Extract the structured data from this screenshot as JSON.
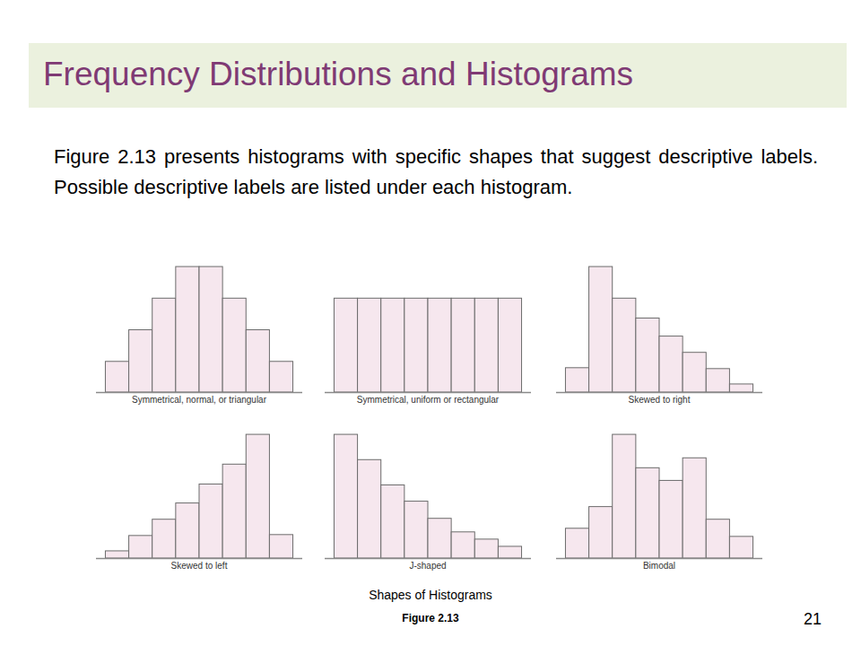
{
  "slide": {
    "title": "Frequency Distributions and Histograms",
    "text": "Figure 2.13 presents histograms with specific shapes that suggest descriptive labels. Possible descriptive labels are listed under each histogram.",
    "caption": "Shapes of Histograms",
    "figure": "Figure 2.13",
    "page": "21"
  },
  "chart_data": [
    {
      "type": "histogram",
      "title": "Symmetrical, normal, or triangular",
      "bins": [
        0,
        1,
        2,
        3,
        4,
        5,
        6,
        7,
        8
      ],
      "values": [
        34,
        69,
        104,
        139,
        139,
        104,
        69,
        34
      ],
      "color": "#f6e7ee",
      "xlim": [
        -0.4,
        8.4
      ],
      "ylim": [
        0,
        150
      ],
      "grid": false,
      "tick_labels": false
    },
    {
      "type": "histogram",
      "title": "Symmetrical, uniform or rectangular",
      "bins": [
        0,
        1,
        2,
        3,
        4,
        5,
        6,
        7,
        8
      ],
      "values": [
        104,
        104,
        104,
        104,
        104,
        104,
        104,
        104
      ],
      "color": "#f6e7ee",
      "xlim": [
        -0.4,
        8.4
      ],
      "ylim": [
        0,
        150
      ],
      "grid": false,
      "tick_labels": false
    },
    {
      "type": "histogram",
      "title": "Skewed to right",
      "bins": [
        0,
        1,
        2,
        3,
        4,
        5,
        6,
        7,
        8
      ],
      "values": [
        27,
        139,
        104,
        82,
        62,
        44,
        26,
        9
      ],
      "color": "#f6e7ee",
      "xlim": [
        -0.4,
        8.4
      ],
      "ylim": [
        0,
        150
      ],
      "grid": false,
      "tick_labels": false
    },
    {
      "type": "histogram",
      "title": "Skewed to left",
      "bins": [
        0,
        1,
        2,
        3,
        4,
        5,
        6,
        7,
        8
      ],
      "values": [
        8,
        25,
        43,
        61,
        82,
        104,
        137,
        26
      ],
      "color": "#f6e7ee",
      "xlim": [
        -0.4,
        8.4
      ],
      "ylim": [
        0,
        150
      ],
      "grid": false,
      "tick_labels": false
    },
    {
      "type": "histogram",
      "title": "J-shaped",
      "bins": [
        0,
        1,
        2,
        3,
        4,
        5,
        6,
        7,
        8
      ],
      "values": [
        137,
        109,
        81,
        63,
        44,
        29,
        21,
        13
      ],
      "color": "#f6e7ee",
      "xlim": [
        -0.4,
        8.4
      ],
      "ylim": [
        0,
        150
      ],
      "grid": false,
      "tick_labels": false
    },
    {
      "type": "histogram",
      "title": "Bimodal",
      "bins": [
        0,
        1,
        2,
        3,
        4,
        5,
        6,
        7,
        8
      ],
      "values": [
        33,
        57,
        137,
        100,
        86,
        111,
        43,
        24
      ],
      "color": "#f6e7ee",
      "xlim": [
        -0.4,
        8.4
      ],
      "ylim": [
        0,
        150
      ],
      "grid": false,
      "tick_labels": false
    }
  ]
}
